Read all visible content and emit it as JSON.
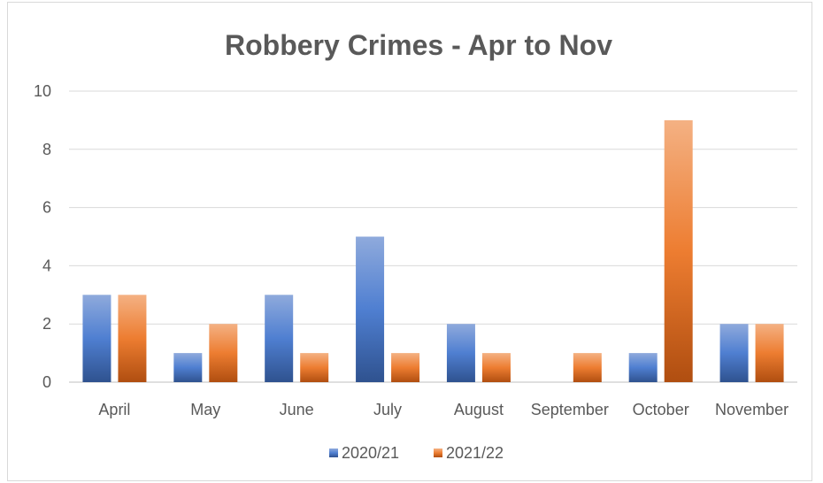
{
  "chart_data": {
    "type": "bar",
    "title": "Robbery Crimes - Apr to Nov",
    "categories": [
      "April",
      "May",
      "June",
      "July",
      "August",
      "September",
      "October",
      "November"
    ],
    "series": [
      {
        "name": "2020/21",
        "values": [
          3,
          1,
          3,
          5,
          2,
          0,
          1,
          2
        ],
        "color": "#4472c4"
      },
      {
        "name": "2021/22",
        "values": [
          3,
          2,
          1,
          1,
          1,
          1,
          9,
          2
        ],
        "color": "#ed7d31"
      }
    ],
    "ylim": [
      0,
      10
    ],
    "yticks": [
      "0",
      "2",
      "4",
      "6",
      "8",
      "10"
    ],
    "grid": true,
    "legend": "bottom"
  }
}
